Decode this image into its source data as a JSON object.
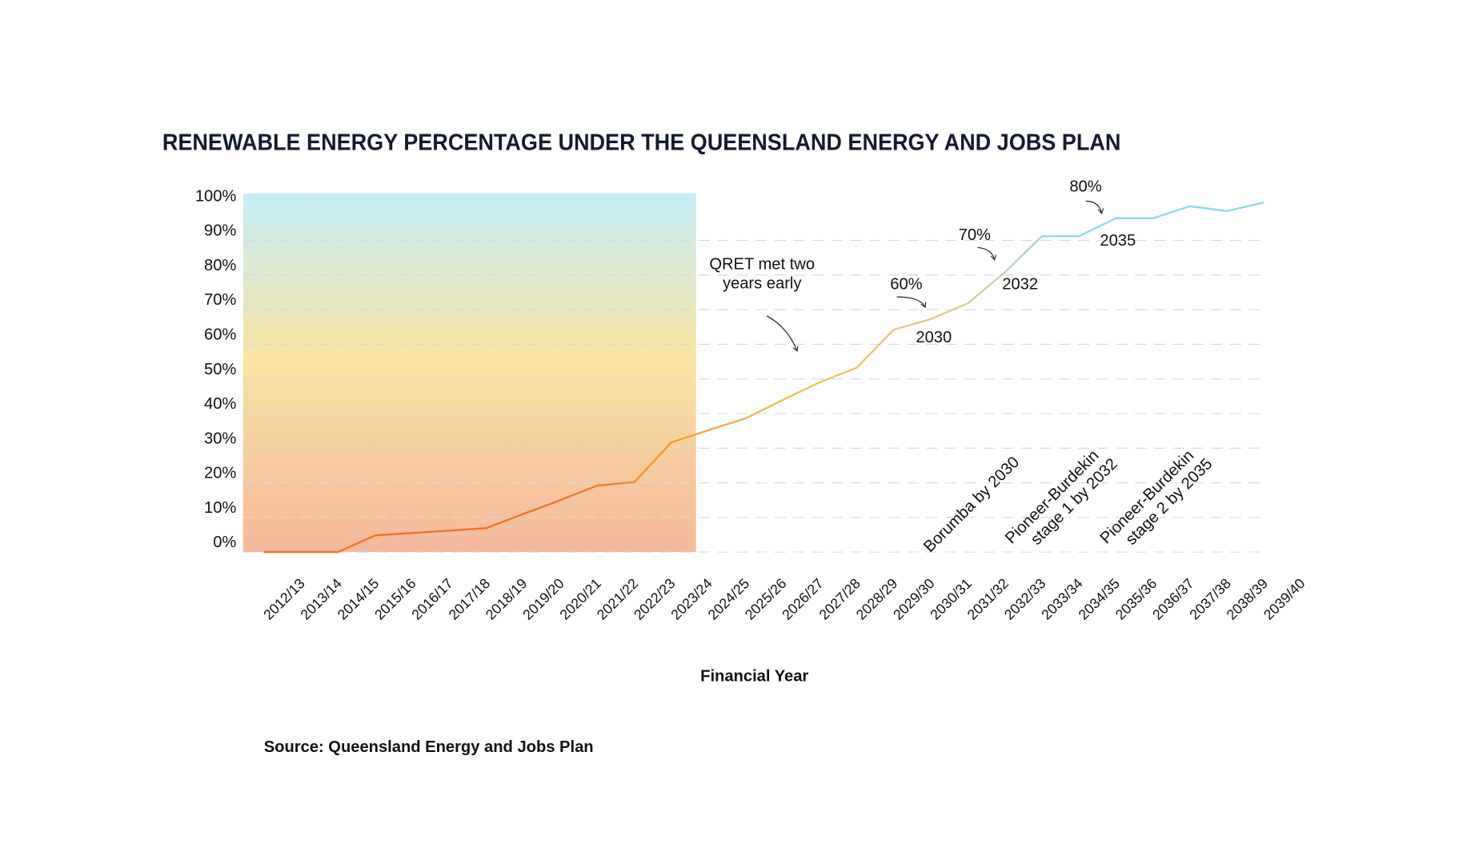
{
  "chart_data": {
    "type": "line",
    "title": "RENEWABLE ENERGY PERCENTAGE UNDER THE QUEENSLAND ENERGY AND JOBS PLAN",
    "xlabel": "Financial Year",
    "ylabel": "",
    "ylim": [
      0,
      100
    ],
    "yticks": [
      "0%",
      "10%",
      "20%",
      "30%",
      "40%",
      "50%",
      "60%",
      "70%",
      "80%",
      "90%",
      "100%"
    ],
    "grid": true,
    "categories": [
      "2012/13",
      "2013/14",
      "2014/15",
      "2015/16",
      "2016/17",
      "2017/18",
      "2018/19",
      "2019/20",
      "2020/21",
      "2021/22",
      "2022/23",
      "2023/24",
      "2024/25",
      "2025/26",
      "2026/27",
      "2027/28",
      "2028/29",
      "2029/30",
      "2030/31",
      "2031/32",
      "2032/33",
      "2033/34",
      "2034/35",
      "2035/36",
      "2036/37",
      "2037/38",
      "2038/39",
      "2039/40"
    ],
    "values": [
      0,
      0,
      0,
      4.8,
      5.5,
      6.2,
      6.9,
      11,
      15,
      19.2,
      20.2,
      31.7,
      35.2,
      38.6,
      43.9,
      49,
      53.2,
      64.2,
      67.3,
      71.8,
      80.8,
      91.2,
      91.2,
      96.4,
      96.4,
      99.9,
      98.5,
      101
    ],
    "historical_shading": {
      "from": "2012/13",
      "to": "2023/24",
      "colors": [
        "#c5eef8",
        "#f9e4a5",
        "#f4b99b"
      ]
    },
    "line_colors": [
      "#ef7426",
      "#f3c04a",
      "#d6cfa4",
      "#8fd9e6"
    ],
    "annotations": [
      {
        "text": [
          "QRET met two",
          "years early"
        ]
      },
      {
        "label": "60%",
        "year": "2030"
      },
      {
        "label": "70%",
        "year": "2032"
      },
      {
        "label": "80%",
        "year": "2035"
      },
      {
        "text": [
          "Borumba by 2030"
        ]
      },
      {
        "text": [
          "Pioneer-Burdekin",
          "stage 1 by 2032"
        ]
      },
      {
        "text": [
          "Pioneer-Burdekin",
          "stage 2 by 2035"
        ]
      }
    ],
    "source": "Source: Queensland Energy and Jobs Plan"
  }
}
